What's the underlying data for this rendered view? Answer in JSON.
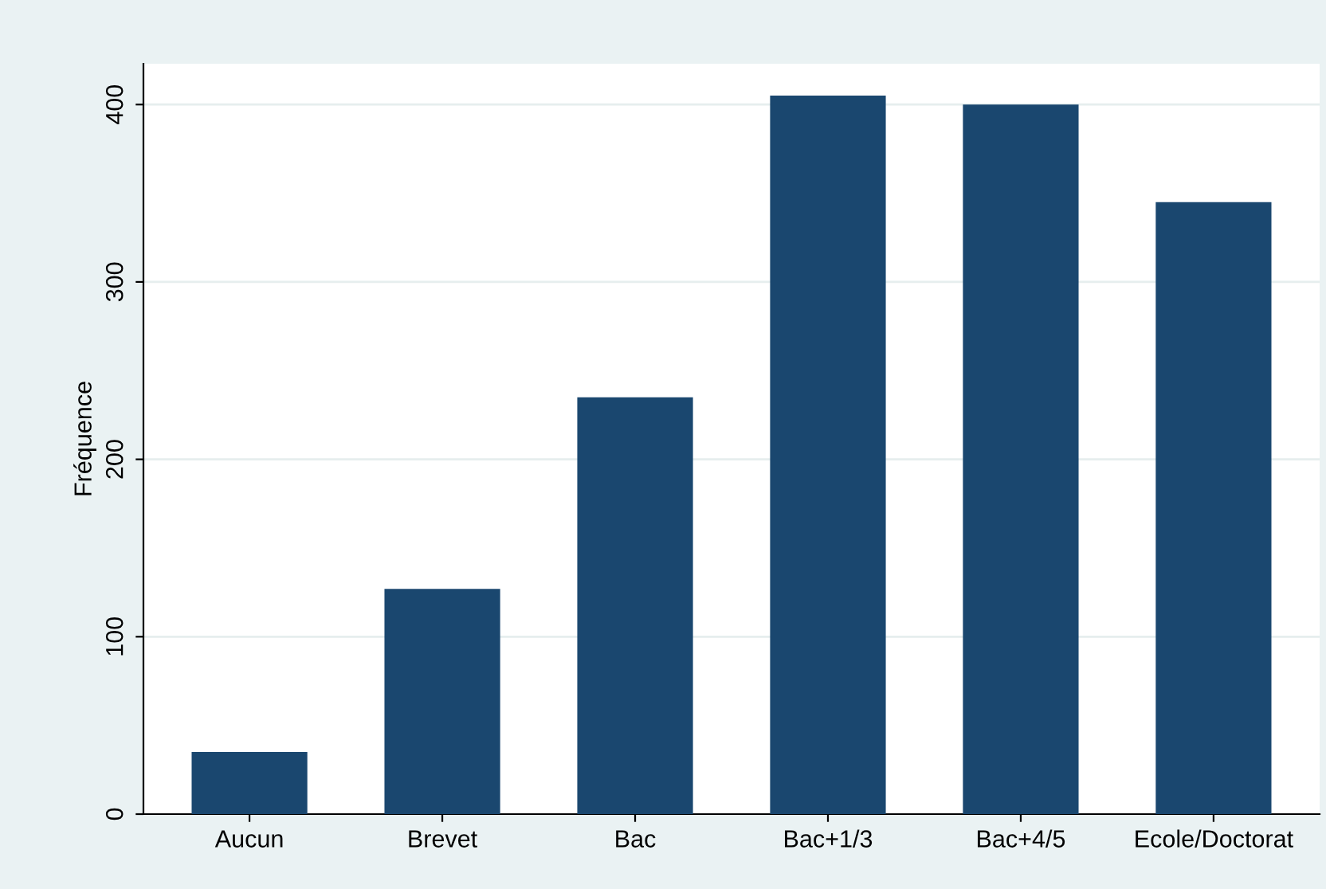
{
  "chart_data": {
    "type": "bar",
    "ylabel": "Fréquence",
    "categories": [
      "Aucun",
      "Brevet",
      "Bac",
      "Bac+1/3",
      "Bac+4/5",
      "Ecole/Doctorat"
    ],
    "values": [
      35,
      127,
      235,
      405,
      400,
      345
    ],
    "color": "#1a476f",
    "ylim": [
      0,
      423
    ],
    "yticks": [
      0,
      100,
      200,
      300,
      400
    ],
    "grid": "y",
    "legend": false
  }
}
